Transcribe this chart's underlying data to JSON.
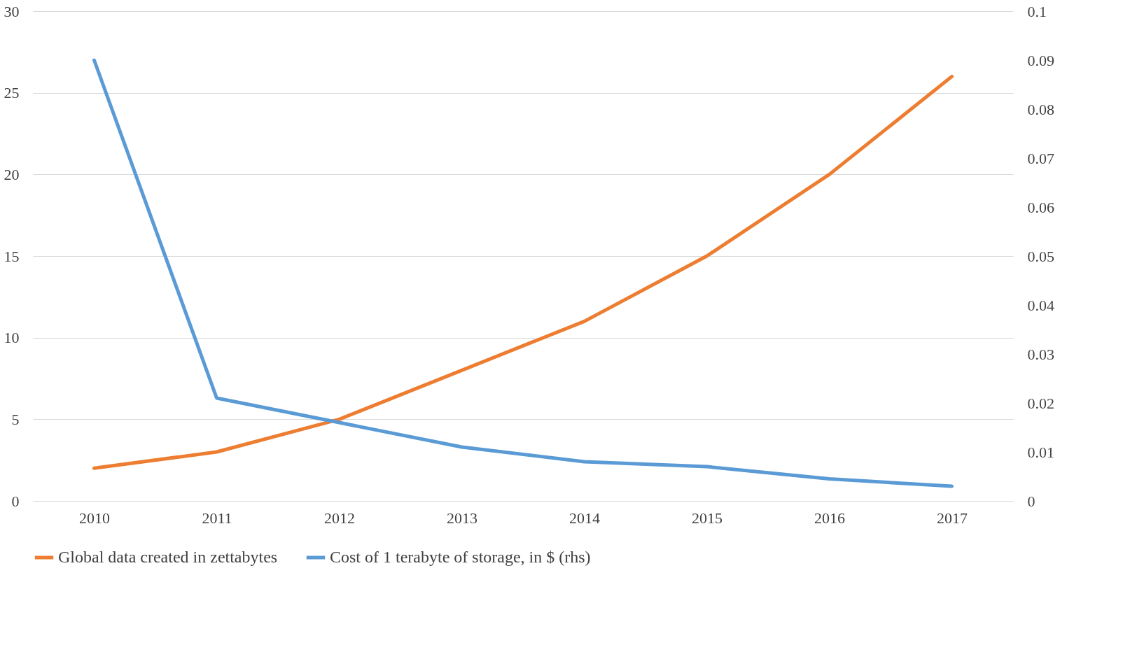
{
  "chart_data": {
    "type": "line",
    "categories": [
      "2010",
      "2011",
      "2012",
      "2013",
      "2014",
      "2015",
      "2016",
      "2017"
    ],
    "series": [
      {
        "name": "Global data created in zettabytes",
        "color": "#ed7d31",
        "values": [
          2,
          3,
          5,
          8,
          11,
          15,
          20,
          26
        ]
      },
      {
        "name": "Cost of 1 terabyte of storage, in $ (rhs)",
        "color": "#5b9bd5",
        "axis": "y2",
        "values": [
          0.09,
          0.021,
          0.016,
          0.011,
          0.008,
          0.007,
          0.0045,
          0.003
        ]
      }
    ],
    "ylim": [
      0,
      30
    ],
    "yticks": [
      0,
      5,
      10,
      15,
      20,
      25,
      30
    ],
    "y2lim": [
      0,
      0.1
    ],
    "y2ticks": [
      0,
      0.01,
      0.02,
      0.03,
      0.04,
      0.05,
      0.06,
      0.07,
      0.08,
      0.09,
      0.1
    ],
    "grid": "y",
    "legend": "bottom",
    "marker": "none",
    "line_style": "solid"
  }
}
